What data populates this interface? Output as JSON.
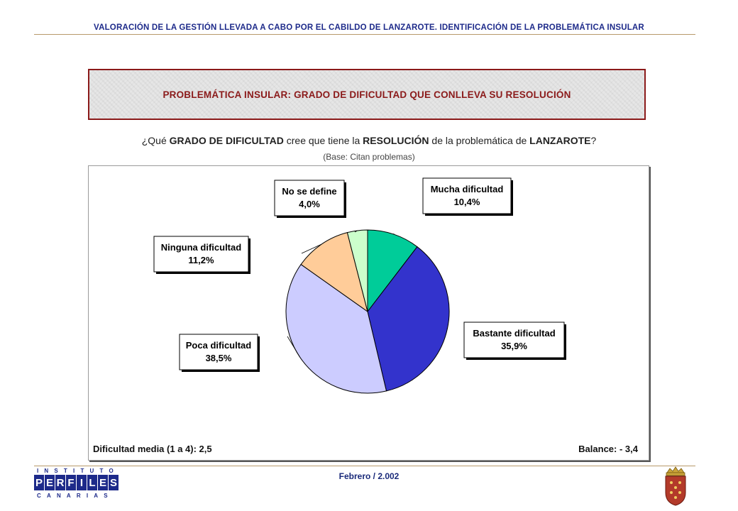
{
  "header": {
    "title": "VALORACIÓN DE LA GESTIÓN LLEVADA A CABO POR EL CABILDO DE LANZAROTE. IDENTIFICACIÓN DE LA PROBLEMÁTICA INSULAR"
  },
  "title_box": {
    "text": "PROBLEMÁTICA INSULAR: GRADO DE DIFICULTAD QUE CONLLEVA SU RESOLUCIÓN"
  },
  "question": {
    "p1": "¿Qué ",
    "b1": "GRADO DE DIFICULTAD",
    "p2": " cree que tiene la ",
    "b2": "RESOLUCIÓN",
    "p3": " de la problemática de ",
    "b3": "LANZAROTE",
    "p4": "?"
  },
  "base": "(Base: Citan problemas)",
  "chart_data": {
    "type": "pie",
    "title": "",
    "slices": [
      {
        "label": "Mucha dificultad",
        "value": 10.4,
        "value_label": "10,4%",
        "color": "#00cc99"
      },
      {
        "label": "Bastante dificultad",
        "value": 35.9,
        "value_label": "35,9%",
        "color": "#3333cc"
      },
      {
        "label": "Poca dificultad",
        "value": 38.5,
        "value_label": "38,5%",
        "color": "#ccccff"
      },
      {
        "label": "Ninguna dificultad",
        "value": 11.2,
        "value_label": "11,2%",
        "color": "#ffcc99"
      },
      {
        "label": "No se define",
        "value": 4.0,
        "value_label": "4,0%",
        "color": "#ccffcc"
      }
    ],
    "start": "12 o'clock",
    "direction": "clockwise",
    "legend": "callout labels"
  },
  "footer": {
    "left": "Dificultad media (1 a 4): 2,5",
    "right": "Balance: - 3,4"
  },
  "date": "Febrero / 2.002",
  "logo": {
    "top": "INSTITUTO",
    "letters": [
      "P",
      "E",
      "R",
      "F",
      "I",
      "L",
      "E",
      "S"
    ],
    "bottom": "CANARIAS",
    "color": "#1d2a8a"
  },
  "crest": {
    "color": "#b33a2a"
  }
}
